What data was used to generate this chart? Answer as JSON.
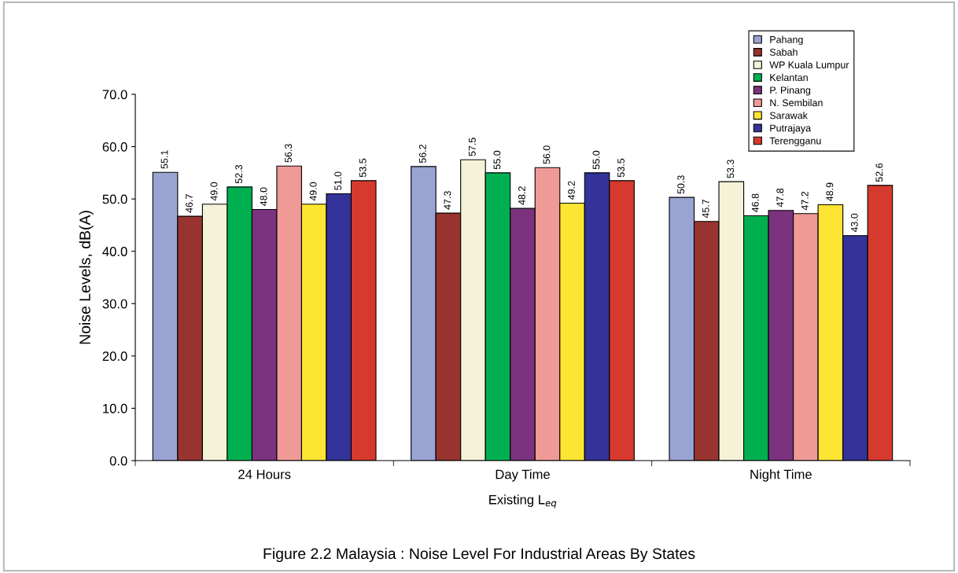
{
  "chart_data": {
    "type": "bar",
    "xlabel": "Existing L$_{eq}$",
    "ylabel": "Noise Levels, dB(A)",
    "categories": [
      "24 Hours",
      "Day Time",
      "Night Time"
    ],
    "series": [
      {
        "name": "Pahang",
        "color": "#99a4d3",
        "values": [
          55.1,
          56.2,
          50.3
        ],
        "value_labels": [
          "55.1",
          "56.2",
          "50.3"
        ]
      },
      {
        "name": "Sabah",
        "color": "#993330",
        "values": [
          46.7,
          47.3,
          45.7
        ],
        "value_labels": [
          "46.7",
          "47.3",
          "45.7"
        ]
      },
      {
        "name": "WP Kuala Lumpur",
        "color": "#f5f3d7",
        "values": [
          49,
          57.5,
          53.3
        ],
        "value_labels": [
          "49.0",
          "57.5",
          "53.3"
        ]
      },
      {
        "name": "Kelantan",
        "color": "#00b050",
        "values": [
          52.3,
          55,
          46.8
        ],
        "value_labels": [
          "52.3",
          "55.0",
          "46.8"
        ]
      },
      {
        "name": "P. Pinang",
        "color": "#7b337f",
        "values": [
          48,
          48.2,
          47.8
        ],
        "value_labels": [
          "48.0",
          "48.2",
          "47.8"
        ]
      },
      {
        "name": "N. Sembilan",
        "color": "#ef9a96",
        "values": [
          56.3,
          56,
          47.2
        ],
        "value_labels": [
          "56.3",
          "56.0",
          "47.2"
        ]
      },
      {
        "name": "Sarawak",
        "color": "#ffe533",
        "values": [
          49,
          49.2,
          48.9
        ],
        "value_labels": [
          "49.0",
          "49.2",
          "48.9"
        ]
      },
      {
        "name": "Putrajaya",
        "color": "#333399",
        "values": [
          51,
          55,
          43
        ],
        "value_labels": [
          "51.0",
          "55.0",
          "43.0"
        ]
      },
      {
        "name": "Terengganu",
        "color": "#d63a2e",
        "values": [
          53.5,
          53.5,
          52.6
        ],
        "value_labels": [
          "53.5",
          "53.5",
          "52.6"
        ]
      }
    ],
    "ylim": [
      0,
      70
    ],
    "yticks": [
      {
        "value": 0,
        "label": "0.0"
      },
      {
        "value": 10,
        "label": "10.0"
      },
      {
        "value": 20,
        "label": "20.0"
      },
      {
        "value": 30,
        "label": "30.0"
      },
      {
        "value": 40,
        "label": "40.0"
      },
      {
        "value": 50,
        "label": "50.0"
      },
      {
        "value": 60,
        "label": "60.0"
      },
      {
        "value": 70,
        "label": "70.0"
      }
    ],
    "grid": false,
    "legend": "top right",
    "annotations": [
      "Figure 2.2 Malaysia : Noise Level For Industrial Areas By States"
    ]
  }
}
